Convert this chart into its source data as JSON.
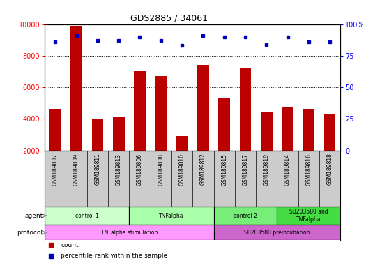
{
  "title": "GDS2885 / 34061",
  "samples": [
    "GSM189807",
    "GSM189809",
    "GSM189811",
    "GSM189813",
    "GSM189806",
    "GSM189808",
    "GSM189810",
    "GSM189812",
    "GSM189815",
    "GSM189817",
    "GSM189819",
    "GSM189814",
    "GSM189816",
    "GSM189818"
  ],
  "counts": [
    4650,
    9900,
    4000,
    4150,
    7000,
    6700,
    2900,
    7400,
    5300,
    7200,
    4450,
    4750,
    4650,
    4300
  ],
  "percentile_ranks": [
    86,
    91,
    87,
    87,
    90,
    87,
    83,
    91,
    90,
    90,
    84,
    90,
    86,
    86
  ],
  "bar_color": "#bb0000",
  "dot_color": "#0000bb",
  "ylim_left": [
    2000,
    10000
  ],
  "ylim_right": [
    0,
    100
  ],
  "yticks_left": [
    2000,
    4000,
    6000,
    8000,
    10000
  ],
  "yticks_right": [
    0,
    25,
    50,
    75,
    100
  ],
  "ytick_right_labels": [
    "0",
    "25",
    "50",
    "75",
    "100%"
  ],
  "agent_groups": [
    {
      "label": "control 1",
      "start": 0,
      "end": 4,
      "color": "#ccffcc"
    },
    {
      "label": "TNFalpha",
      "start": 4,
      "end": 8,
      "color": "#aaffaa"
    },
    {
      "label": "control 2",
      "start": 8,
      "end": 11,
      "color": "#77ee77"
    },
    {
      "label": "SB203580 and\nTNFalpha",
      "start": 11,
      "end": 14,
      "color": "#44dd44"
    }
  ],
  "protocol_groups": [
    {
      "label": "TNFalpha stimulation",
      "start": 0,
      "end": 8,
      "color": "#ff99ff"
    },
    {
      "label": "SB203580 preincubation",
      "start": 8,
      "end": 14,
      "color": "#cc66cc"
    }
  ],
  "bg_color": "#ffffff",
  "label_bg": "#cccccc",
  "grid_color": "#444444",
  "arrow_color": "#888888"
}
